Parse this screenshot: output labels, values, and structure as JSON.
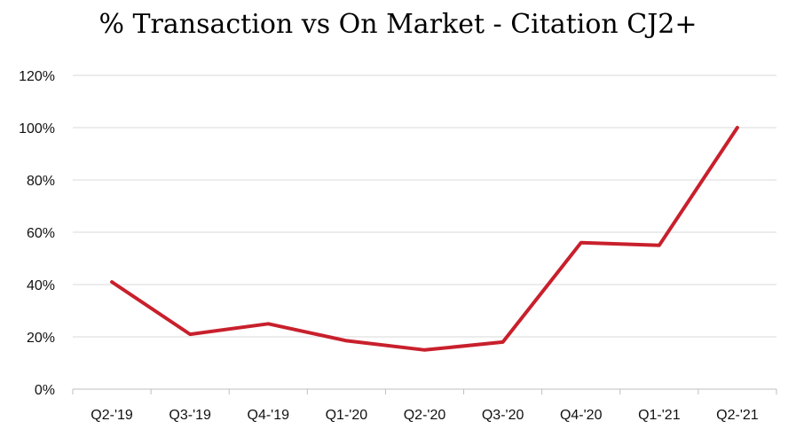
{
  "chart_data": {
    "type": "line",
    "title": "% Transaction vs On Market - Citation CJ2+",
    "xlabel": "",
    "ylabel": "",
    "categories": [
      "Q2-'19",
      "Q3-'19",
      "Q4-'19",
      "Q1-'20",
      "Q2-'20",
      "Q3-'20",
      "Q4-'20",
      "Q1-'21",
      "Q2-'21"
    ],
    "series": [
      {
        "values": [
          41,
          21,
          25,
          18.5,
          15,
          18,
          56,
          55,
          100
        ],
        "color": "#c8202c"
      }
    ],
    "ylim": [
      0,
      120
    ],
    "yticks": [
      0,
      20,
      40,
      60,
      80,
      100,
      120
    ],
    "ytick_labels": [
      "0%",
      "20%",
      "40%",
      "60%",
      "80%",
      "100%",
      "120%"
    ],
    "grid": true,
    "legend": "none"
  }
}
